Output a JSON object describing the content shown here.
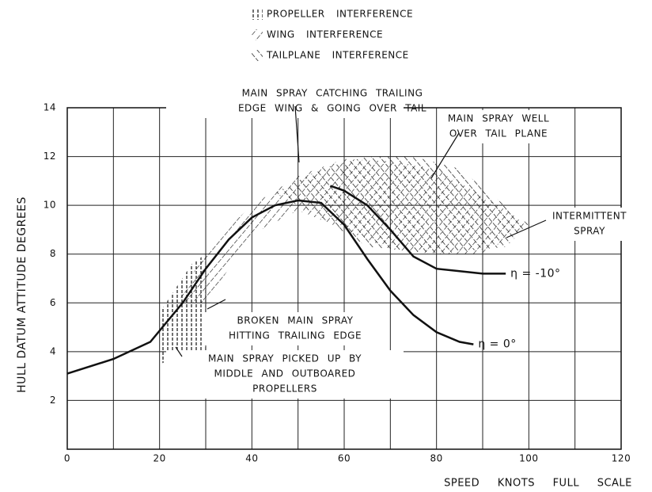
{
  "chart_data": {
    "type": "line",
    "xlabel": "SPEED KNOTS FULL SCALE",
    "ylabel": "HULL DATUM ATTITUDE DEGREES",
    "xlim": [
      0,
      120
    ],
    "ylim": [
      0,
      14
    ],
    "xticks": [
      0,
      20,
      40,
      60,
      80,
      100,
      120
    ],
    "yticks": [
      2,
      4,
      6,
      8,
      10,
      12,
      14
    ],
    "grid": true,
    "series": [
      {
        "name": "η = 0°",
        "color": "#111111",
        "x": [
          0,
          10,
          18,
          25,
          30,
          35,
          40,
          45,
          50,
          55,
          60,
          65,
          70,
          75,
          80,
          85,
          88
        ],
        "values": [
          3.1,
          3.7,
          4.4,
          6.0,
          7.4,
          8.6,
          9.5,
          10.0,
          10.2,
          10.1,
          9.2,
          7.8,
          6.5,
          5.5,
          4.8,
          4.4,
          4.3
        ]
      },
      {
        "name": "η = -10°",
        "color": "#111111",
        "x": [
          57,
          60,
          65,
          70,
          75,
          80,
          85,
          90,
          95
        ],
        "values": [
          10.8,
          10.6,
          10.0,
          9.0,
          7.9,
          7.4,
          7.3,
          7.2,
          7.2
        ]
      }
    ],
    "regions": [
      {
        "name": "PROPELLER INTERFERENCE",
        "x": [
          20,
          30,
          30,
          27,
          20
        ],
        "y": [
          3.5,
          4.0,
          8.0,
          7.6,
          5.6
        ]
      },
      {
        "name": "WING INTERFERENCE",
        "x": [
          24,
          30,
          40,
          50,
          60,
          70,
          80,
          95,
          100,
          90,
          80,
          70,
          60,
          50,
          40,
          30
        ],
        "y": [
          6.0,
          8.2,
          10.0,
          11.2,
          11.9,
          11.8,
          11.5,
          9.8,
          9.2,
          8.0,
          8.0,
          8.2,
          9.0,
          9.8,
          8.8,
          6.0
        ]
      },
      {
        "name": "TAILPLANE INTERFERENCE",
        "x": [
          45,
          55,
          65,
          75,
          85,
          100,
          95,
          80,
          65,
          55
        ],
        "y": [
          10.5,
          11.5,
          12.0,
          12.0,
          11.5,
          9.2,
          8.3,
          8.0,
          8.3,
          9.5
        ]
      }
    ],
    "annotations": [
      {
        "lines": [
          "MAIN SPRAY CATCHING TRAILING",
          "EDGE WING & GOING OVER TAIL"
        ]
      },
      {
        "lines": [
          "MAIN SPRAY WELL",
          "OVER TAIL PLANE"
        ]
      },
      {
        "lines": [
          "INTERMITTENT",
          "SPRAY"
        ]
      },
      {
        "lines": [
          "BROKEN MAIN SPRAY",
          "HITTING TRAILING EDGE"
        ]
      },
      {
        "lines": [
          "MAIN SPRAY PICKED UP BY",
          "MIDDLE AND OUTBOARED",
          "PROPELLERS"
        ]
      }
    ]
  }
}
